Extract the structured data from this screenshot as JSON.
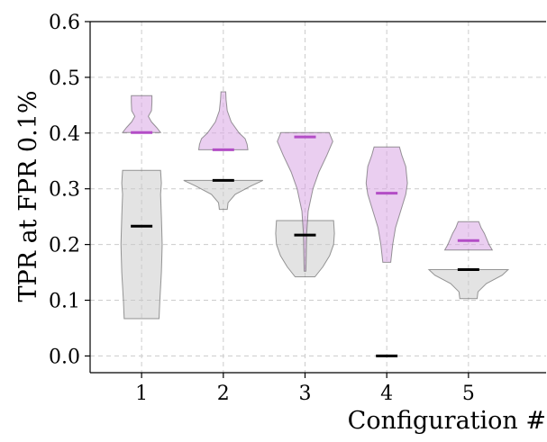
{
  "chart_data": {
    "type": "violin",
    "xlabel": "Configuration #",
    "ylabel": "TPR at FPR 0.1%",
    "categories": [
      "1",
      "2",
      "3",
      "4",
      "5"
    ],
    "ylim": [
      -0.03,
      0.6
    ],
    "yticks": [
      0.0,
      0.1,
      0.2,
      0.3,
      0.4,
      0.5,
      0.6
    ],
    "ytick_labels": [
      "0.0",
      "0.1",
      "0.2",
      "0.3",
      "0.4",
      "0.5",
      "0.6"
    ],
    "grid": true,
    "colors": {
      "grey": "#c8c8c8",
      "purple": "#d9a6e3",
      "purple_median": "#b34dc6",
      "grey_median": "#000000",
      "edge": "#555555"
    },
    "series": [
      {
        "color": "grey",
        "violins": [
          {
            "min": 0.067,
            "max": 0.333,
            "median": 0.233,
            "profile": [
              [
                0.067,
                0.44
              ],
              [
                0.1,
                0.46
              ],
              [
                0.15,
                0.5
              ],
              [
                0.2,
                0.52
              ],
              [
                0.25,
                0.5
              ],
              [
                0.29,
                0.48
              ],
              [
                0.31,
                0.5
              ],
              [
                0.333,
                0.48
              ]
            ]
          },
          {
            "min": 0.263,
            "max": 0.315,
            "median": 0.315,
            "profile": [
              [
                0.263,
                0.1
              ],
              [
                0.275,
                0.12
              ],
              [
                0.29,
                0.3
              ],
              [
                0.305,
                0.7
              ],
              [
                0.315,
                1.0
              ]
            ]
          },
          {
            "min": 0.142,
            "max": 0.243,
            "median": 0.217,
            "profile": [
              [
                0.142,
                0.25
              ],
              [
                0.16,
                0.45
              ],
              [
                0.18,
                0.62
              ],
              [
                0.2,
                0.72
              ],
              [
                0.22,
                0.74
              ],
              [
                0.243,
                0.72
              ]
            ]
          },
          {
            "min": 0.0,
            "max": 0.0,
            "median": 0.0,
            "profile": []
          },
          {
            "min": 0.103,
            "max": 0.155,
            "median": 0.155,
            "profile": [
              [
                0.103,
                0.22
              ],
              [
                0.115,
                0.24
              ],
              [
                0.13,
                0.45
              ],
              [
                0.145,
                0.85
              ],
              [
                0.155,
                1.0
              ]
            ]
          }
        ]
      },
      {
        "color": "purple",
        "violins": [
          {
            "min": 0.401,
            "max": 0.467,
            "median": 0.401,
            "profile": [
              [
                0.401,
                0.48
              ],
              [
                0.41,
                0.38
              ],
              [
                0.42,
                0.25
              ],
              [
                0.43,
                0.17
              ],
              [
                0.44,
                0.25
              ],
              [
                0.455,
                0.26
              ],
              [
                0.467,
                0.26
              ]
            ]
          },
          {
            "min": 0.37,
            "max": 0.474,
            "median": 0.37,
            "profile": [
              [
                0.37,
                0.62
              ],
              [
                0.38,
                0.6
              ],
              [
                0.39,
                0.55
              ],
              [
                0.4,
                0.4
              ],
              [
                0.42,
                0.2
              ],
              [
                0.44,
                0.1
              ],
              [
                0.46,
                0.07
              ],
              [
                0.474,
                0.06
              ]
            ]
          },
          {
            "min": 0.152,
            "max": 0.401,
            "median": 0.393,
            "profile": [
              [
                0.152,
                0.02
              ],
              [
                0.18,
                0.03
              ],
              [
                0.22,
                0.04
              ],
              [
                0.26,
                0.08
              ],
              [
                0.3,
                0.2
              ],
              [
                0.33,
                0.35
              ],
              [
                0.36,
                0.55
              ],
              [
                0.385,
                0.7
              ],
              [
                0.401,
                0.61
              ]
            ]
          },
          {
            "min": 0.168,
            "max": 0.375,
            "median": 0.292,
            "profile": [
              [
                0.168,
                0.1
              ],
              [
                0.2,
                0.15
              ],
              [
                0.23,
                0.22
              ],
              [
                0.26,
                0.35
              ],
              [
                0.29,
                0.48
              ],
              [
                0.31,
                0.52
              ],
              [
                0.34,
                0.48
              ],
              [
                0.36,
                0.38
              ],
              [
                0.375,
                0.32
              ]
            ]
          },
          {
            "min": 0.19,
            "max": 0.241,
            "median": 0.207,
            "profile": [
              [
                0.19,
                0.6
              ],
              [
                0.2,
                0.52
              ],
              [
                0.21,
                0.46
              ],
              [
                0.22,
                0.4
              ],
              [
                0.23,
                0.32
              ],
              [
                0.241,
                0.26
              ]
            ]
          }
        ]
      }
    ]
  }
}
